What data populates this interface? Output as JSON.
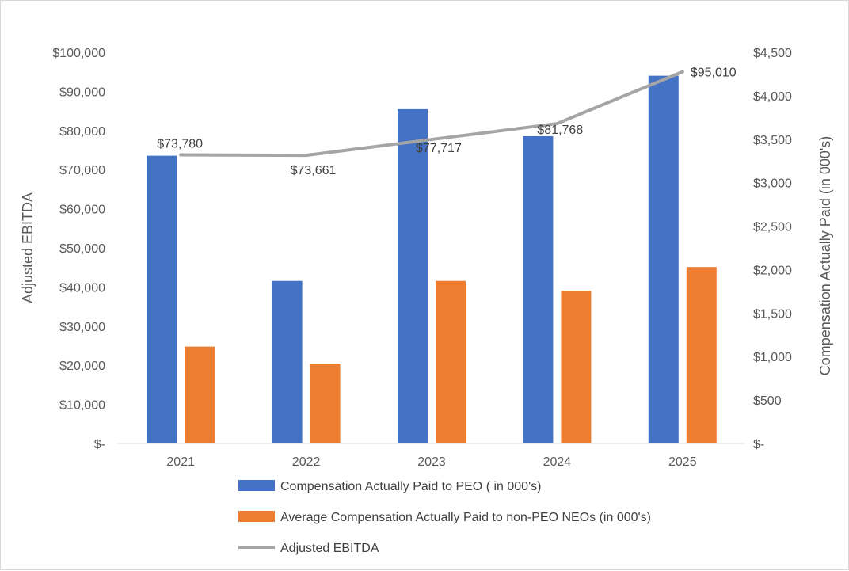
{
  "chart_data": {
    "type": "bar",
    "categories": [
      "2021",
      "2022",
      "2023",
      "2024",
      "2025"
    ],
    "y_left": {
      "label": "Adjusted EBITDA",
      "ticks": [
        "$-",
        "$10,000",
        "$20,000",
        "$30,000",
        "$40,000",
        "$50,000",
        "$60,000",
        "$70,000",
        "$80,000",
        "$90,000",
        "$100,000"
      ],
      "lim": [
        0,
        100000
      ]
    },
    "y_right": {
      "label": "Compensation Actually Paid (in 000's)",
      "ticks": [
        "$-",
        "$500",
        "$1,000",
        "$1,500",
        "$2,000",
        "$2,500",
        "$3,000",
        "$3,500",
        "$4,000",
        "$4,500"
      ],
      "lim": [
        0,
        4500
      ]
    },
    "series": [
      {
        "name": "Compensation Actually Paid to PEO ( in 000's)",
        "kind": "bar",
        "axis": "right",
        "color": "#4472C4",
        "values": [
          3310,
          1870,
          3845,
          3535,
          4230
        ]
      },
      {
        "name": "Average Compensation Actually Paid to non-PEO NEOs  (in 000's)",
        "kind": "bar",
        "axis": "right",
        "color": "#ED7D31",
        "values": [
          1115,
          920,
          1870,
          1755,
          2030
        ]
      },
      {
        "name": "Adjusted EBITDA",
        "kind": "line",
        "axis": "left",
        "color": "#A5A5A5",
        "values": [
          73780,
          73661,
          77717,
          81768,
          95010
        ],
        "labels": [
          "$73,780",
          "$73,661",
          "$77,717",
          "$81,768",
          "$95,010"
        ]
      }
    ],
    "legend_position": "bottom",
    "grid": false
  }
}
